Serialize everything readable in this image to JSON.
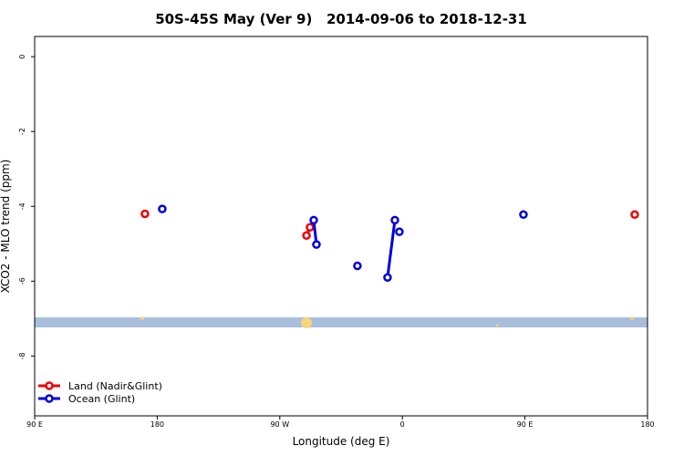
{
  "chart_data": {
    "type": "line",
    "title": "50S-45S May (Ver 9)   2014-09-06 to 2018-12-31",
    "xlabel": "Longitude (deg E)",
    "ylabel": "XCO2 - MLO trend (ppm)",
    "xlim": [
      90,
      540
    ],
    "xticks": [
      {
        "value": 90,
        "label": "90 E"
      },
      {
        "value": 180,
        "label": "180"
      },
      {
        "value": 270,
        "label": "90 W"
      },
      {
        "value": 360,
        "label": "0"
      },
      {
        "value": 450,
        "label": "90 E"
      },
      {
        "value": 540,
        "label": "180"
      }
    ],
    "ylim": [
      -9.6,
      0.54
    ],
    "yticks": [
      0,
      -2,
      -4,
      -6,
      -8
    ],
    "legend": "bottom-left",
    "series": [
      {
        "name": "Land (Nadir&Glint)",
        "color": "#ee0000",
        "x": [
          171,
          null,
          289.6,
          292.2,
          null,
          530.6
        ],
        "values": [
          -4.2,
          null,
          -4.78,
          -4.56,
          null,
          -4.22
        ]
      },
      {
        "name": "Ocean (Glint)",
        "color": "#0000dd",
        "x": [
          183.7,
          null,
          294.9,
          296.9,
          null,
          327,
          null,
          349.1,
          354.5,
          null,
          357.8,
          null,
          448.9
        ],
        "values": [
          -4.07,
          null,
          -4.37,
          -5.02,
          null,
          -5.59,
          null,
          -5.9,
          -4.37,
          null,
          -4.68,
          null,
          -4.22
        ]
      }
    ]
  }
}
